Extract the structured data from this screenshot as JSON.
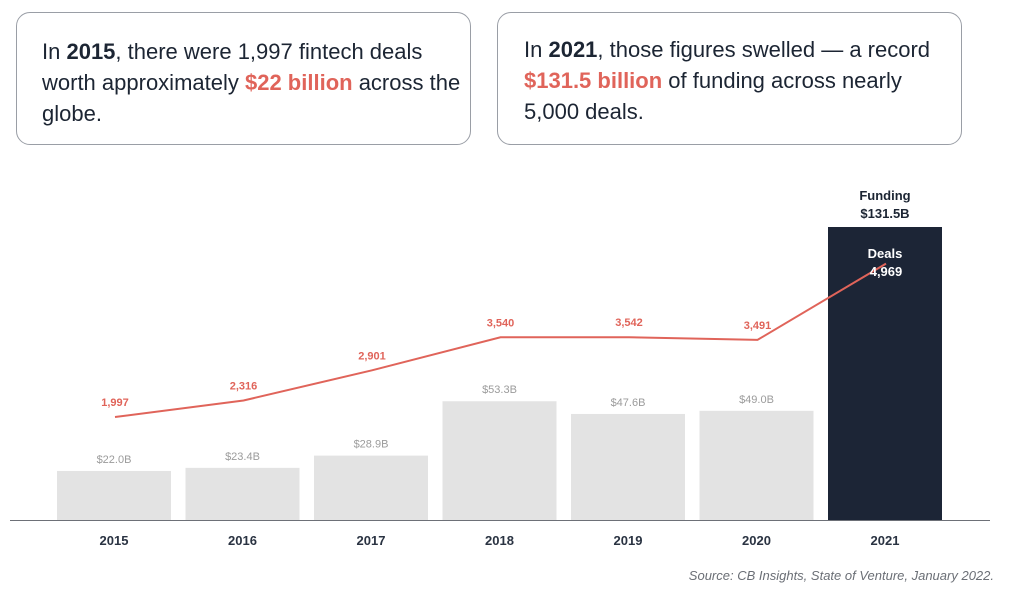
{
  "callouts": {
    "left": {
      "pre": "In ",
      "year": "2015",
      "mid": ", there were 1,997 fintech deals worth approximately ",
      "amount": "$22 billion",
      "post": " across the globe."
    },
    "right": {
      "pre": "In ",
      "year": "2021",
      "mid": ", those figures swelled — a record ",
      "amount": "$131.5 billion",
      "post": " of funding across nearly 5,000 deals."
    }
  },
  "source": "Source: CB Insights, State of Venture, January 2022.",
  "colors": {
    "bar": "#e3e3e3",
    "highlight_bar": "#1c2536",
    "line": "#e0645a",
    "accent": "#e0645a",
    "bar_label": "#9b9b9b",
    "axis_label": "#2a3342"
  },
  "chart_data": {
    "type": "bar",
    "categories": [
      "2015",
      "2016",
      "2017",
      "2018",
      "2019",
      "2020",
      "2021"
    ],
    "series": [
      {
        "name": "Funding",
        "values": [
          22.0,
          23.4,
          28.9,
          53.3,
          47.6,
          49.0,
          131.5
        ],
        "labels": [
          "$22.0B",
          "$23.4B",
          "$28.9B",
          "$53.3B",
          "$47.6B",
          "$49.0B",
          "$131.5B"
        ],
        "kind": "bar"
      },
      {
        "name": "Deals",
        "values": [
          1997,
          2316,
          2901,
          3540,
          3542,
          3491,
          4969
        ],
        "labels": [
          "1,997",
          "2,316",
          "2,901",
          "3,540",
          "3,542",
          "3,491",
          "4,969"
        ],
        "kind": "line"
      }
    ],
    "highlight_category": "2021",
    "highlight_labels": {
      "funding_title": "Funding",
      "deals_title": "Deals"
    },
    "bar_ylim": [
      0,
      131.5
    ],
    "line_ylim": [
      0,
      5000
    ],
    "grid": false,
    "legend": "none"
  }
}
